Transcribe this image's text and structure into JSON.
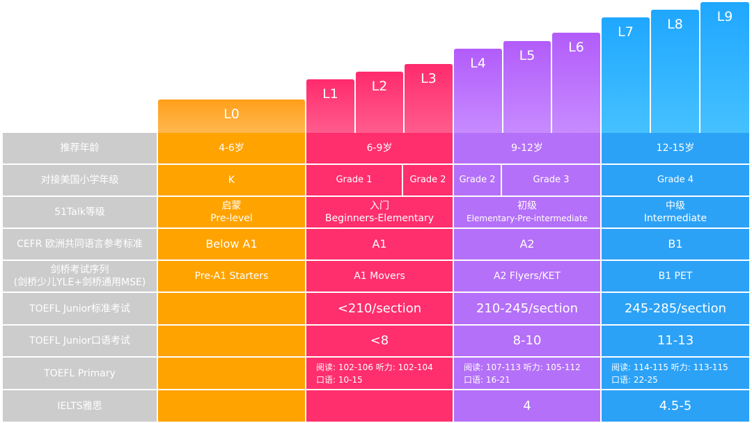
{
  "levels": [
    "L0",
    "L1",
    "L2",
    "L3",
    "L4",
    "L5",
    "L6",
    "L7",
    "L8",
    "L9"
  ],
  "rows": {
    "age": {
      "label": "推荐年龄",
      "cells": [
        "4-6岁",
        "6-9岁",
        "9-12岁",
        "12-15岁"
      ]
    },
    "us_grade": {
      "label": "对接美国小学年级",
      "cells": [
        "K",
        "Grade 1",
        "Grade 2",
        "Grade 2",
        "Grade 3",
        "Grade 4"
      ]
    },
    "talk51": {
      "label": "51Talk等级",
      "cells": [
        {
          "cn": "启蒙",
          "en": "Pre-level"
        },
        {
          "cn": "入门",
          "en": "Beginners-Elementary"
        },
        {
          "cn": "初级",
          "en": "Elementary-Pre-intermediate"
        },
        {
          "cn": "中级",
          "en": "Intermediate"
        }
      ]
    },
    "cefr": {
      "label": "CEFR 欧洲共同语言参考标准",
      "cells": [
        "Below A1",
        "A1",
        "A2",
        "B1"
      ]
    },
    "cambridge": {
      "label_line1": "剑桥考试序列",
      "label_line2": "(剑桥少儿YLE+剑桥通用MSE)",
      "cells": [
        "Pre-A1 Starters",
        "A1 Movers",
        "A2 Flyers/KET",
        "B1 PET"
      ]
    },
    "toefl_junior": {
      "label": "TOEFL Junior标准考试",
      "cells": [
        "",
        "<210/section",
        "210-245/section",
        "245-285/section"
      ]
    },
    "toefl_junior_speaking": {
      "label": "TOEFL Junior口语考试",
      "cells": [
        "",
        "<8",
        "8-10",
        "11-13"
      ]
    },
    "toefl_primary": {
      "label": "TOEFL Primary",
      "cells": [
        {
          "line1": "",
          "line2": ""
        },
        {
          "line1": "阅读: 102-106   听力: 102-104",
          "line2": "口语: 10-15"
        },
        {
          "line1": "阅读: 107-113   听力: 105-112",
          "line2": "口语: 16-21"
        },
        {
          "line1": "阅读: 114-115   听力: 113-115",
          "line2": "口语: 22-25"
        }
      ]
    },
    "ielts": {
      "label": "IELTS雅思",
      "cells": [
        "",
        "",
        "4",
        "4.5-5"
      ]
    }
  },
  "colors": {
    "orange": "#ffa300",
    "pink": "#ff2e6c",
    "violet": "#b470f8",
    "blue": "#2ca2f7",
    "header_gray": "#cccccc"
  }
}
